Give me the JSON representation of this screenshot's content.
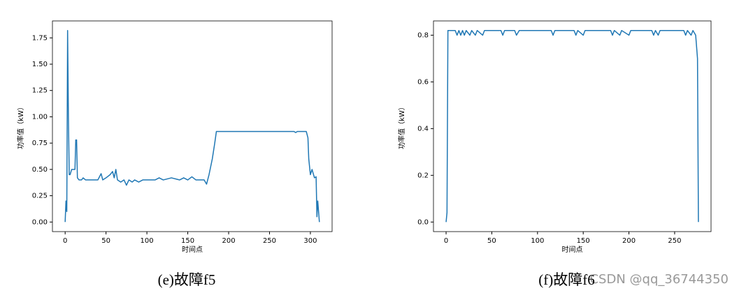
{
  "chart_data": [
    {
      "type": "line",
      "caption": "(e)故障f5",
      "xlabel": "时间点",
      "ylabel": "功率值（kW）",
      "series": [
        {
          "color": "#1f77b4",
          "x": [
            0,
            1,
            2,
            3,
            4,
            5,
            6,
            8,
            10,
            12,
            13,
            14,
            15,
            17,
            20,
            22,
            25,
            30,
            40,
            44,
            46,
            50,
            55,
            58,
            60,
            62,
            64,
            68,
            72,
            75,
            78,
            82,
            85,
            90,
            95,
            100,
            110,
            115,
            120,
            130,
            140,
            145,
            150,
            155,
            160,
            170,
            173,
            176,
            180,
            183,
            185,
            200,
            250,
            280,
            282,
            284,
            295,
            297,
            298,
            300,
            302,
            305,
            307,
            308,
            309,
            310,
            311
          ],
          "values": [
            0,
            0.2,
            0.1,
            1.82,
            1.0,
            0.45,
            0.45,
            0.5,
            0.5,
            0.5,
            0.78,
            0.78,
            0.42,
            0.4,
            0.4,
            0.42,
            0.4,
            0.4,
            0.4,
            0.46,
            0.4,
            0.42,
            0.45,
            0.48,
            0.42,
            0.5,
            0.4,
            0.38,
            0.4,
            0.35,
            0.4,
            0.38,
            0.4,
            0.38,
            0.4,
            0.4,
            0.4,
            0.42,
            0.4,
            0.42,
            0.4,
            0.42,
            0.4,
            0.43,
            0.4,
            0.4,
            0.36,
            0.45,
            0.6,
            0.75,
            0.86,
            0.86,
            0.86,
            0.86,
            0.85,
            0.86,
            0.86,
            0.8,
            0.6,
            0.45,
            0.5,
            0.42,
            0.43,
            0.05,
            0.2,
            0.1,
            0
          ]
        }
      ],
      "xlim": [
        -15.55,
        326.55
      ],
      "ylim": [
        -0.091,
        1.911
      ],
      "xticks": [
        0,
        50,
        100,
        150,
        200,
        250,
        300
      ],
      "yticks": [
        {
          "value": 0,
          "label": "0.00"
        },
        {
          "value": 0.25,
          "label": "0.25"
        },
        {
          "value": 0.5,
          "label": "0.50"
        },
        {
          "value": 0.75,
          "label": "0.75"
        },
        {
          "value": 1,
          "label": "1.00"
        },
        {
          "value": 1.25,
          "label": "1.25"
        },
        {
          "value": 1.5,
          "label": "1.50"
        },
        {
          "value": 1.75,
          "label": "1.75"
        }
      ]
    },
    {
      "type": "line",
      "caption": "(f)故障f6",
      "xlabel": "时间点",
      "ylabel": "功率值（kW）",
      "series": [
        {
          "color": "#1f77b4",
          "x": [
            0,
            1,
            2,
            10,
            12,
            14,
            16,
            18,
            20,
            22,
            26,
            28,
            32,
            34,
            40,
            42,
            60,
            62,
            64,
            75,
            77,
            80,
            115,
            117,
            119,
            140,
            142,
            144,
            150,
            152,
            180,
            182,
            184,
            190,
            192,
            200,
            202,
            225,
            227,
            229,
            232,
            234,
            260,
            262,
            264,
            268,
            270,
            273,
            275,
            276
          ],
          "values": [
            0,
            0.04,
            0.82,
            0.82,
            0.8,
            0.82,
            0.8,
            0.82,
            0.8,
            0.82,
            0.8,
            0.82,
            0.8,
            0.82,
            0.8,
            0.82,
            0.82,
            0.8,
            0.82,
            0.82,
            0.8,
            0.82,
            0.82,
            0.8,
            0.82,
            0.82,
            0.8,
            0.82,
            0.8,
            0.82,
            0.82,
            0.8,
            0.82,
            0.8,
            0.82,
            0.8,
            0.82,
            0.82,
            0.8,
            0.82,
            0.8,
            0.82,
            0.82,
            0.8,
            0.82,
            0.8,
            0.82,
            0.8,
            0.7,
            0
          ]
        }
      ],
      "xlim": [
        -13.8,
        289.8
      ],
      "ylim": [
        -0.041,
        0.861
      ],
      "xticks": [
        0,
        50,
        100,
        150,
        200,
        250
      ],
      "yticks": [
        {
          "value": 0,
          "label": "0.0"
        },
        {
          "value": 0.2,
          "label": "0.2"
        },
        {
          "value": 0.4,
          "label": "0.4"
        },
        {
          "value": 0.6,
          "label": "0.6"
        },
        {
          "value": 0.8,
          "label": "0.8"
        }
      ]
    }
  ],
  "watermark": "CSDN @qq_36744350"
}
